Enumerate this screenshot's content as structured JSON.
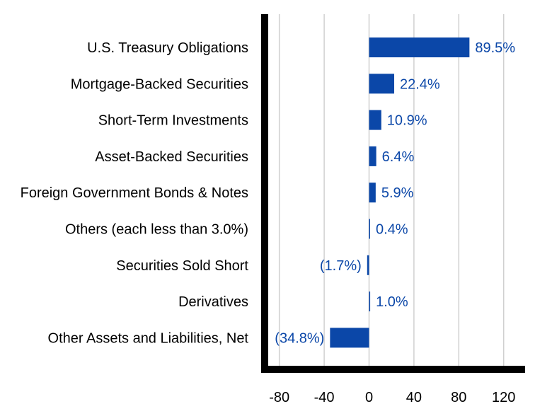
{
  "chart_data": {
    "type": "bar",
    "orientation": "horizontal",
    "title": "",
    "xlabel": "",
    "ylabel": "",
    "categories": [
      "U.S. Treasury Obligations",
      "Mortgage-Backed Securities",
      "Short-Term Investments",
      "Asset-Backed Securities",
      "Foreign Government Bonds & Notes",
      "Others (each less than 3.0%)",
      "Securities Sold Short",
      "Derivatives",
      "Other Assets and Liabilities, Net"
    ],
    "values": [
      89.5,
      22.4,
      10.9,
      6.4,
      5.9,
      0.4,
      -1.7,
      1.0,
      -34.8
    ],
    "value_labels": [
      "89.5%",
      "22.4%",
      "10.9%",
      "6.4%",
      "5.9%",
      "0.4%",
      "(1.7%)",
      "1.0%",
      "(34.8%)"
    ],
    "xlim": [
      -96,
      138
    ],
    "xticks": [
      -80,
      -40,
      0,
      40,
      80,
      120
    ],
    "grid": true,
    "legend": "none",
    "bar_color": "#0b47a8",
    "label_color": "#0b47a8"
  }
}
